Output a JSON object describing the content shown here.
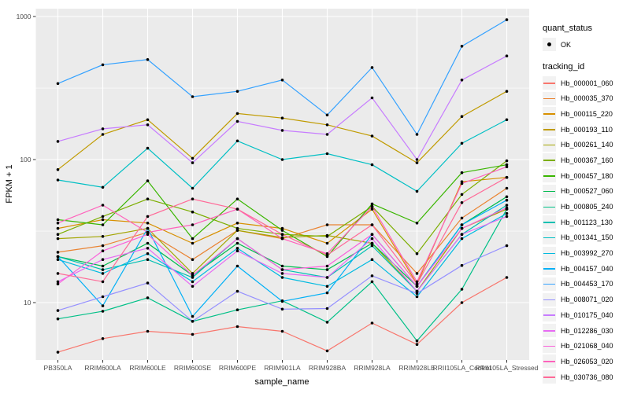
{
  "figure": {
    "background": "#FFFFFF",
    "panel_background": "#EBEBEB",
    "gridline_color": "#FFFFFF",
    "tick_color": "#333333",
    "tick_label_color": "#4D4D4D",
    "axis_title_color": "#000000",
    "legend_key_background": "#F2F2F2",
    "point_color": "#000000"
  },
  "chart_data": {
    "type": "line",
    "title": "",
    "xlabel": "sample_name",
    "ylabel": "FPKM + 1",
    "y_scale": "log10",
    "y_ticks": [
      10,
      100,
      1000
    ],
    "y_minor_ticks": [
      31.6,
      316
    ],
    "ylim": [
      4,
      1135
    ],
    "grid": true,
    "legend_position": "right",
    "categories": [
      "PB350LA",
      "RRIM600LA",
      "RRIM600LE",
      "RRIM600SE",
      "RRIM600PE",
      "RRIM901LA",
      "RRIM928BA",
      "RRIM928LA",
      "RRIM928LE",
      "RRII105LA_Control",
      "RRII105LA_Stressed"
    ],
    "legend": {
      "quant_status_title": "quant_status",
      "quant_status_items": [
        {
          "label": "OK",
          "marker": "point"
        }
      ],
      "tracking_title": "tracking_id"
    },
    "series": [
      {
        "name": "Hb_000001_060",
        "color": "#F8766D",
        "values": [
          4.5,
          5.6,
          6.3,
          6.0,
          6.8,
          6.3,
          4.6,
          7.2,
          5.1,
          10,
          15
        ]
      },
      {
        "name": "Hb_000035_370",
        "color": "#EA8331",
        "values": [
          22.5,
          25,
          31,
          20,
          32,
          28,
          35,
          35,
          16,
          39,
          63
        ]
      },
      {
        "name": "Hb_000115_220",
        "color": "#D89000",
        "values": [
          33,
          38,
          36,
          26,
          36,
          33,
          26,
          45,
          13.5,
          70,
          75
        ]
      },
      {
        "name": "Hb_000193_110",
        "color": "#C09B00",
        "values": [
          85,
          150,
          190,
          102,
          210,
          195,
          175,
          146,
          95,
          200,
          300
        ]
      },
      {
        "name": "Hb_000261_140",
        "color": "#A3A500",
        "values": [
          28,
          29,
          33,
          16,
          32,
          28.5,
          29.5,
          26,
          12,
          33,
          45
        ]
      },
      {
        "name": "Hb_000367_160",
        "color": "#7CAE00",
        "values": [
          30,
          40,
          53,
          43,
          33,
          30,
          29,
          47,
          22,
          57,
          98
        ]
      },
      {
        "name": "Hb_000457_180",
        "color": "#39B600",
        "values": [
          38,
          35,
          71,
          28,
          53,
          32,
          21,
          49,
          36,
          81,
          92
        ]
      },
      {
        "name": "Hb_000527_060",
        "color": "#00BB4E",
        "values": [
          21,
          18,
          26,
          15.5,
          26,
          18,
          17,
          26,
          13,
          35,
          55
        ]
      },
      {
        "name": "Hb_000805_240",
        "color": "#00C087",
        "values": [
          7.7,
          8.7,
          10.8,
          7.4,
          8.9,
          10.3,
          7.3,
          14,
          5.4,
          12.4,
          45
        ]
      },
      {
        "name": "Hb_001123_130",
        "color": "#00C0B2",
        "values": [
          21,
          17,
          20,
          15,
          28,
          17,
          15,
          25,
          12,
          30,
          48
        ]
      },
      {
        "name": "Hb_001341_150",
        "color": "#00BFC4",
        "values": [
          72,
          64,
          120,
          63,
          135,
          100,
          110,
          92,
          60,
          130,
          190
        ]
      },
      {
        "name": "Hb_003992_270",
        "color": "#00BAE0",
        "values": [
          20,
          16,
          22,
          14,
          24,
          15,
          13,
          20,
          11,
          28,
          42
        ]
      },
      {
        "name": "Hb_004157_040",
        "color": "#00B0F6",
        "values": [
          21,
          9.5,
          33,
          8,
          18,
          10.2,
          11.7,
          30,
          13,
          35,
          52
        ]
      },
      {
        "name": "Hb_004453_170",
        "color": "#35A2FF",
        "values": [
          340,
          460,
          500,
          275,
          300,
          360,
          205,
          440,
          150,
          620,
          950
        ]
      },
      {
        "name": "Hb_008071_020",
        "color": "#9590FF",
        "values": [
          8.8,
          11,
          13.7,
          7.4,
          12,
          9,
          9.1,
          15.4,
          11.6,
          18.2,
          25
        ]
      },
      {
        "name": "Hb_010175_040",
        "color": "#C77CFF",
        "values": [
          134,
          164,
          175,
          95,
          185,
          160,
          150,
          270,
          100,
          360,
          530
        ]
      },
      {
        "name": "Hb_012286_030",
        "color": "#E76BF3",
        "values": [
          14,
          20,
          24,
          13,
          23,
          16,
          15,
          28,
          12,
          30,
          40
        ]
      },
      {
        "name": "Hb_021068_040",
        "color": "#FA62DB",
        "values": [
          13.5,
          23,
          30,
          15.5,
          28,
          17,
          18,
          30,
          13,
          33,
          46
        ]
      },
      {
        "name": "Hb_026053_020",
        "color": "#FF62BC",
        "values": [
          36,
          48,
          31,
          35,
          45,
          28,
          22,
          47,
          14,
          68,
          89
        ]
      },
      {
        "name": "Hb_030736_080",
        "color": "#FF6A98",
        "values": [
          16,
          14,
          40,
          53,
          45,
          30,
          21.5,
          35,
          13.5,
          50,
          75
        ]
      }
    ]
  }
}
